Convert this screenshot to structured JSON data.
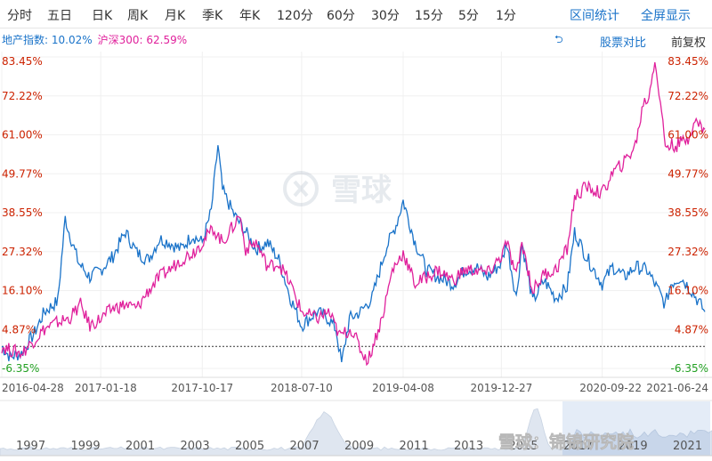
{
  "toolbar": {
    "tabs": [
      {
        "label": "分时",
        "active": false
      },
      {
        "label": "五日",
        "active": false
      },
      {
        "label": "日K",
        "active": false
      },
      {
        "label": "周K",
        "active": false
      },
      {
        "label": "月K",
        "active": false
      },
      {
        "label": "季K",
        "active": false
      },
      {
        "label": "年K",
        "active": false
      },
      {
        "label": "120分",
        "active": false
      },
      {
        "label": "60分",
        "active": false
      },
      {
        "label": "30分",
        "active": false
      },
      {
        "label": "15分",
        "active": false
      },
      {
        "label": "5分",
        "active": false
      },
      {
        "label": "1分",
        "active": false
      }
    ],
    "range_stats": "区间统计",
    "fullscreen": "全屏显示"
  },
  "legend": {
    "series1": "地产指数: 10.02%",
    "series2": "沪深300: 62.59%"
  },
  "compare_label": "股票对比",
  "adjust_label": "前复权",
  "watermark": "雪球",
  "footer_watermark": "雪球：锦锦研究院",
  "colors": {
    "series1": "#1a73c9",
    "series2": "#e0219c",
    "pos": "#cc2200",
    "neg": "#22a022",
    "zero": "#333333"
  },
  "chart_data": {
    "type": "line",
    "y_ticks": [
      "83.45%",
      "72.22%",
      "61.00%",
      "49.77%",
      "38.55%",
      "27.32%",
      "16.10%",
      "4.87%",
      "-6.35%"
    ],
    "x_ticks": [
      "2016-04-28",
      "2017-01-18",
      "2017-10-17",
      "2018-07-10",
      "2019-04-08",
      "2019-12-27",
      "2020-09-22",
      "2021-06-24"
    ],
    "ylim": [
      -6.35,
      83.45
    ],
    "zero_line": 0,
    "x_range": [
      "2016-04-28",
      "2021-06-24"
    ],
    "series": [
      {
        "name": "地产指数",
        "color": "#1a73c9",
        "points": [
          [
            "2016-04-28",
            0
          ],
          [
            "2016-05-20",
            -3
          ],
          [
            "2016-06-20",
            -2
          ],
          [
            "2016-07-25",
            4
          ],
          [
            "2016-08-20",
            10
          ],
          [
            "2016-09-25",
            13
          ],
          [
            "2016-10-15",
            37
          ],
          [
            "2016-10-25",
            33
          ],
          [
            "2016-11-20",
            24
          ],
          [
            "2016-12-20",
            20
          ],
          [
            "2017-01-18",
            22
          ],
          [
            "2017-02-20",
            26
          ],
          [
            "2017-03-25",
            33
          ],
          [
            "2017-04-25",
            27
          ],
          [
            "2017-05-25",
            25
          ],
          [
            "2017-06-25",
            31
          ],
          [
            "2017-07-20",
            30
          ],
          [
            "2017-08-20",
            28
          ],
          [
            "2017-09-20",
            32
          ],
          [
            "2017-10-17",
            30
          ],
          [
            "2017-11-10",
            39
          ],
          [
            "2017-11-28",
            58
          ],
          [
            "2017-12-10",
            45
          ],
          [
            "2018-01-10",
            38
          ],
          [
            "2018-02-10",
            33
          ],
          [
            "2018-03-10",
            28
          ],
          [
            "2018-04-10",
            30
          ],
          [
            "2018-05-10",
            25
          ],
          [
            "2018-06-10",
            14
          ],
          [
            "2018-07-10",
            6
          ],
          [
            "2018-08-20",
            10
          ],
          [
            "2018-09-20",
            8
          ],
          [
            "2018-10-10",
            5
          ],
          [
            "2018-10-25",
            -5
          ],
          [
            "2018-11-15",
            8
          ],
          [
            "2018-12-15",
            10
          ],
          [
            "2019-01-15",
            14
          ],
          [
            "2019-02-20",
            28
          ],
          [
            "2019-03-20",
            35
          ],
          [
            "2019-04-08",
            42
          ],
          [
            "2019-05-10",
            30
          ],
          [
            "2019-06-10",
            22
          ],
          [
            "2019-07-10",
            20
          ],
          [
            "2019-08-20",
            18
          ],
          [
            "2019-09-20",
            22
          ],
          [
            "2019-10-20",
            23
          ],
          [
            "2019-11-20",
            20
          ],
          [
            "2019-12-27",
            24
          ],
          [
            "2020-01-10",
            30
          ],
          [
            "2020-02-05",
            14
          ],
          [
            "2020-02-20",
            30
          ],
          [
            "2020-03-20",
            13
          ],
          [
            "2020-04-20",
            19
          ],
          [
            "2020-05-20",
            14
          ],
          [
            "2020-06-20",
            17
          ],
          [
            "2020-07-10",
            33
          ],
          [
            "2020-08-10",
            26
          ],
          [
            "2020-09-22",
            18
          ],
          [
            "2020-10-20",
            23
          ],
          [
            "2020-11-20",
            20
          ],
          [
            "2020-12-20",
            23
          ],
          [
            "2021-01-20",
            22
          ],
          [
            "2021-02-20",
            16
          ],
          [
            "2021-03-10",
            12
          ],
          [
            "2021-03-25",
            18
          ],
          [
            "2021-04-20",
            20
          ],
          [
            "2021-05-20",
            16
          ],
          [
            "2021-06-24",
            10
          ]
        ]
      },
      {
        "name": "沪深300",
        "color": "#e0219c",
        "points": [
          [
            "2016-04-28",
            0
          ],
          [
            "2016-05-20",
            -1
          ],
          [
            "2016-06-20",
            -2
          ],
          [
            "2016-07-25",
            2
          ],
          [
            "2016-08-20",
            5
          ],
          [
            "2016-09-25",
            7
          ],
          [
            "2016-10-25",
            8
          ],
          [
            "2016-11-25",
            12
          ],
          [
            "2016-12-20",
            6
          ],
          [
            "2017-01-18",
            8
          ],
          [
            "2017-02-20",
            11
          ],
          [
            "2017-03-25",
            12
          ],
          [
            "2017-04-25",
            11
          ],
          [
            "2017-05-25",
            16
          ],
          [
            "2017-06-25",
            20
          ],
          [
            "2017-07-20",
            22
          ],
          [
            "2017-08-20",
            25
          ],
          [
            "2017-09-20",
            27
          ],
          [
            "2017-10-17",
            30
          ],
          [
            "2017-11-15",
            34
          ],
          [
            "2017-12-10",
            30
          ],
          [
            "2018-01-10",
            35
          ],
          [
            "2018-01-25",
            38
          ],
          [
            "2018-02-10",
            28
          ],
          [
            "2018-03-10",
            30
          ],
          [
            "2018-04-10",
            23
          ],
          [
            "2018-05-10",
            24
          ],
          [
            "2018-06-10",
            18
          ],
          [
            "2018-07-10",
            10
          ],
          [
            "2018-08-20",
            8
          ],
          [
            "2018-09-20",
            10
          ],
          [
            "2018-10-20",
            3
          ],
          [
            "2018-11-20",
            5
          ],
          [
            "2018-12-20",
            -2
          ],
          [
            "2019-01-04",
            -4
          ],
          [
            "2019-02-10",
            8
          ],
          [
            "2019-03-10",
            22
          ],
          [
            "2019-04-08",
            27
          ],
          [
            "2019-05-10",
            18
          ],
          [
            "2019-06-10",
            20
          ],
          [
            "2019-07-10",
            22
          ],
          [
            "2019-08-20",
            19
          ],
          [
            "2019-09-20",
            22
          ],
          [
            "2019-10-20",
            22
          ],
          [
            "2019-11-20",
            21
          ],
          [
            "2019-12-27",
            26
          ],
          [
            "2020-01-10",
            30
          ],
          [
            "2020-02-05",
            20
          ],
          [
            "2020-02-20",
            30
          ],
          [
            "2020-03-20",
            16
          ],
          [
            "2020-04-20",
            21
          ],
          [
            "2020-05-20",
            22
          ],
          [
            "2020-06-20",
            28
          ],
          [
            "2020-07-10",
            43
          ],
          [
            "2020-08-10",
            46
          ],
          [
            "2020-09-22",
            44
          ],
          [
            "2020-10-20",
            50
          ],
          [
            "2020-11-20",
            53
          ],
          [
            "2020-12-20",
            58
          ],
          [
            "2021-01-10",
            70
          ],
          [
            "2021-01-25",
            72
          ],
          [
            "2021-02-10",
            83
          ],
          [
            "2021-02-25",
            70
          ],
          [
            "2021-03-10",
            58
          ],
          [
            "2021-04-10",
            58
          ],
          [
            "2021-05-10",
            60
          ],
          [
            "2021-05-25",
            65
          ],
          [
            "2021-06-24",
            62.59
          ]
        ]
      }
    ]
  },
  "overview": {
    "year_labels": [
      "1997",
      "1999",
      "2001",
      "2003",
      "2005",
      "2007",
      "2009",
      "2011",
      "2013",
      "2015",
      "2017",
      "2019",
      "2021"
    ]
  }
}
